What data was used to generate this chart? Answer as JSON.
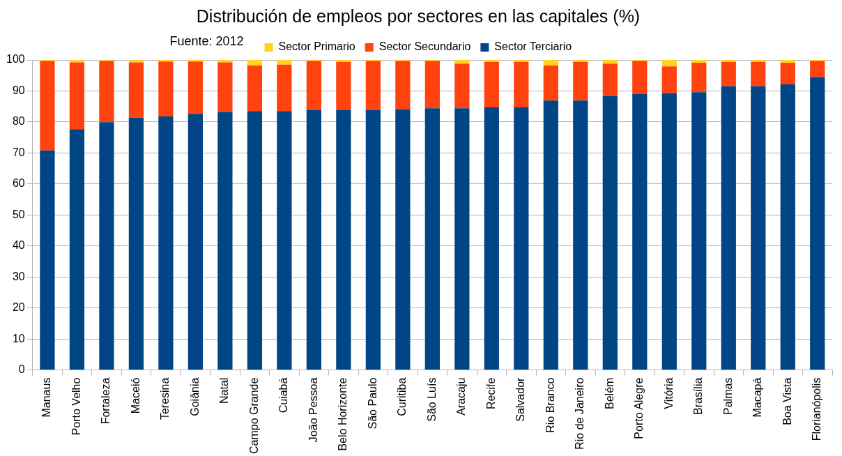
{
  "chart_data": {
    "type": "bar",
    "title": "Distribución de empleos por sectores en las capitales (%)",
    "annotations": [
      "Fuente: 2012"
    ],
    "categories": [
      "Manaus",
      "Porto Velho",
      "Fortaleza",
      "Maceió",
      "Teresina",
      "Goiânia",
      "Natal",
      "Campo Grande",
      "Cuiabá",
      "João Pessoa",
      "Belo Horizonte",
      "São Paulo",
      "Curitiba",
      "São Luís",
      "Aracaju",
      "Recife",
      "Salvador",
      "Rio Branco",
      "Rio de Janeiro",
      "Belém",
      "Porto Alegre",
      "Vitória",
      "Brasília",
      "Palmas",
      "Macapá",
      "Boa Vista",
      "Florianópolis"
    ],
    "stacked": true,
    "series": [
      {
        "name": "Sector Terciario",
        "color": "#004586",
        "values": [
          70.8,
          77.7,
          79.9,
          81.4,
          81.8,
          82.6,
          83.2,
          83.5,
          83.5,
          83.8,
          83.8,
          83.8,
          84.1,
          84.4,
          84.4,
          84.7,
          84.7,
          86.9,
          86.9,
          88.4,
          89.0,
          89.3,
          89.6,
          91.5,
          91.5,
          92.1,
          94.5
        ]
      },
      {
        "name": "Sector Secundario",
        "color": "#ff420e",
        "values": [
          28.9,
          21.5,
          19.8,
          17.8,
          17.7,
          16.9,
          16.0,
          14.7,
          15.0,
          15.9,
          15.6,
          15.9,
          15.6,
          15.3,
          14.4,
          14.7,
          14.7,
          11.3,
          12.5,
          10.4,
          10.7,
          8.6,
          9.5,
          7.9,
          7.9,
          7.0,
          5.2
        ]
      },
      {
        "name": "Sector Primario",
        "color": "#ffd320",
        "values": [
          0.3,
          0.8,
          0.3,
          0.8,
          0.5,
          0.5,
          0.8,
          1.8,
          1.5,
          0.3,
          0.6,
          0.3,
          0.3,
          0.3,
          1.2,
          0.6,
          0.6,
          1.8,
          0.6,
          1.2,
          0.3,
          2.1,
          0.9,
          0.6,
          0.6,
          0.9,
          0.3
        ]
      }
    ],
    "ylim": [
      0,
      100
    ],
    "yticks": [
      0,
      10,
      20,
      30,
      40,
      50,
      60,
      70,
      80,
      90,
      100
    ],
    "grid": "y",
    "legend": "top"
  }
}
